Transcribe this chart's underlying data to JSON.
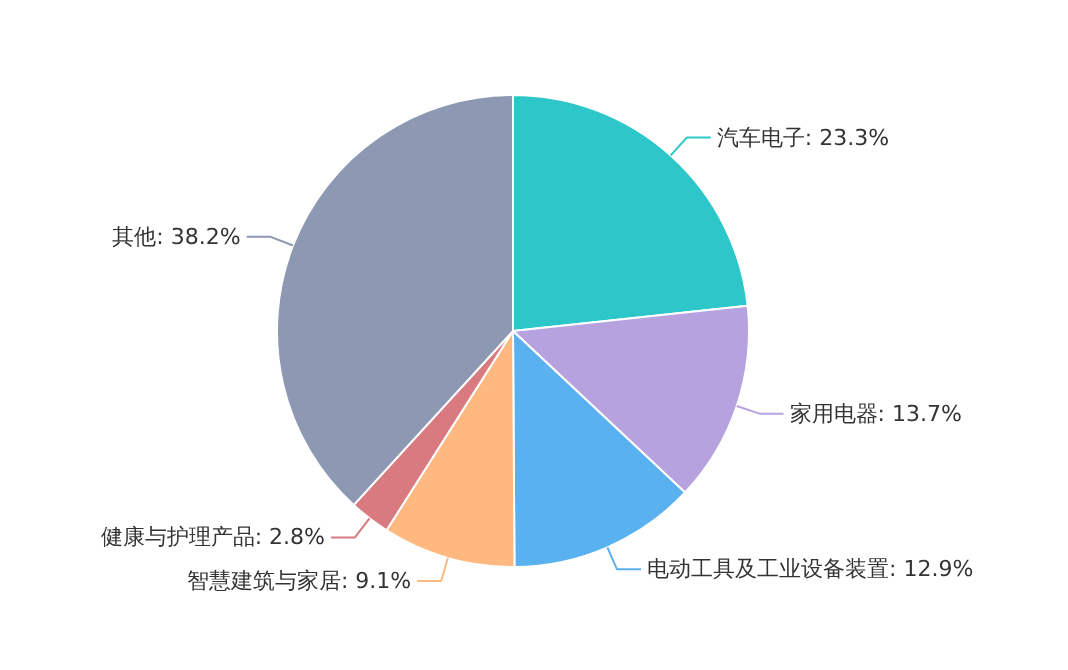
{
  "chart_data": {
    "type": "pie",
    "categories": [
      "汽车电子",
      "家用电器",
      "电动工具及工业设备装置",
      "智慧建筑与家居",
      "健康与护理产品",
      "其他"
    ],
    "values": [
      23.3,
      13.7,
      12.9,
      9.1,
      2.8,
      38.2
    ],
    "value_labels": [
      "23.3%",
      "13.7%",
      "12.9%",
      "9.1%",
      "2.8%",
      "38.2%"
    ],
    "colors": [
      "#2ec7c9",
      "#b6a2de",
      "#5ab1ef",
      "#ffb980",
      "#d87a80",
      "#8d98b3"
    ]
  }
}
